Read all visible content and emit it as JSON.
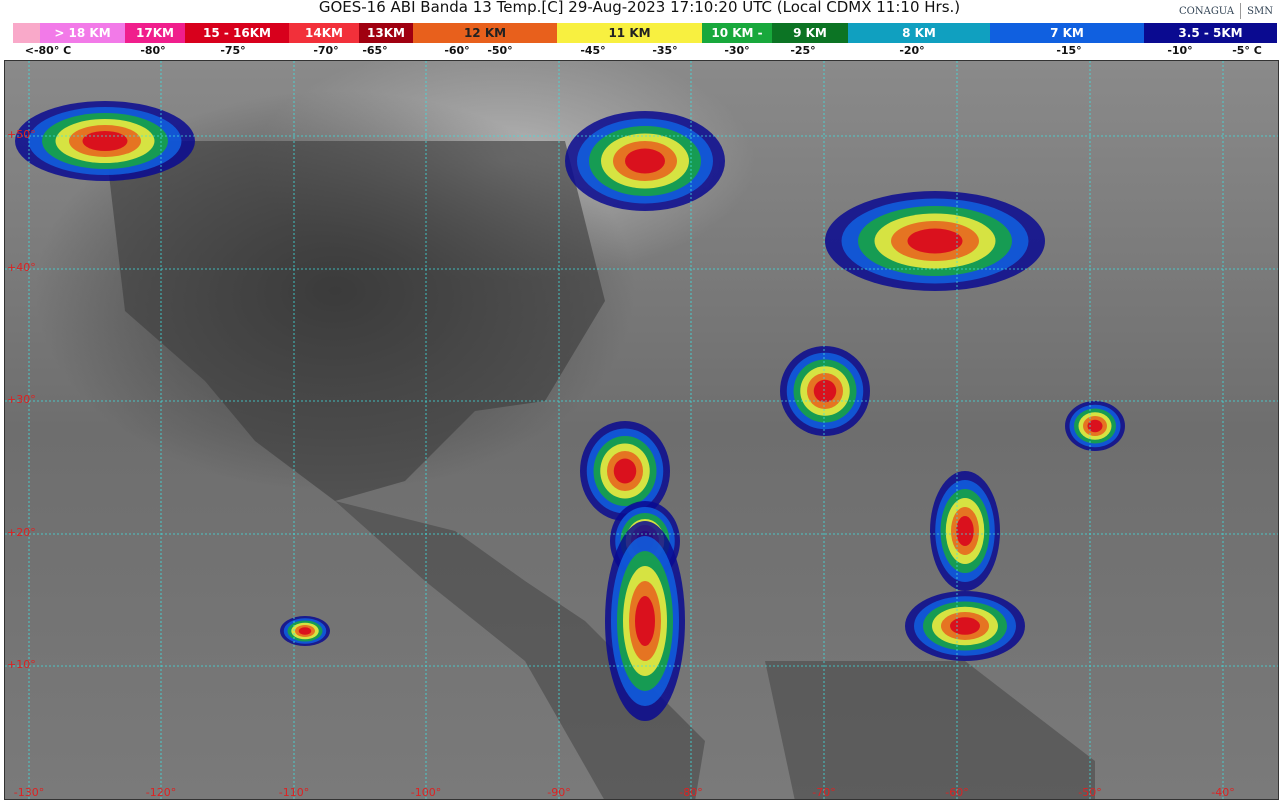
{
  "title": "GOES-16 ABI Banda 13 Temp.[C] 29-Aug-2023 17:10:20 UTC (Local CDMX  11:10 Hrs.)",
  "logos": {
    "left": "CONAGUA",
    "right": "SMN"
  },
  "legend": {
    "segments": [
      {
        "label": "",
        "color": "#f9a9c9"
      },
      {
        "label": "> 18 KM",
        "color": "#f27ae8"
      },
      {
        "label": "17KM",
        "color": "#f01e8c"
      },
      {
        "label": "15 - 16KM",
        "color": "#d8001c"
      },
      {
        "label": "14KM",
        "color": "#f2303a"
      },
      {
        "label": "13KM",
        "color": "#a00010"
      },
      {
        "label": "12 KM",
        "color": "#e8601c"
      },
      {
        "label": "11 KM",
        "color": "#f8f040"
      },
      {
        "label": "10 KM -",
        "color": "#18a83c"
      },
      {
        "label": "9 KM",
        "color": "#0c7424"
      },
      {
        "label": "8 KM",
        "color": "#10a0c0"
      },
      {
        "label": "7 KM",
        "color": "#1060e0"
      },
      {
        "label": "3.5 - 5KM",
        "color": "#0a0a90"
      }
    ],
    "ticks": [
      "<-80° C",
      "-80°",
      "-75°",
      "-70°",
      "-65°",
      "-60°",
      "-50°",
      "-45°",
      "-35°",
      "-30°",
      "-25°",
      "-20°",
      "-15°",
      "-10°",
      "-5°  C"
    ]
  },
  "map": {
    "lat_labels": [
      "+50°",
      "+40°",
      "+30°",
      "+20°",
      "+10°"
    ],
    "lon_labels": [
      "-130°",
      "-120°",
      "-110°",
      "-100°",
      "-90°",
      "-80°",
      "-70°",
      "-60°",
      "-50°",
      "-40°"
    ],
    "grid_color": "#40e0e0"
  }
}
